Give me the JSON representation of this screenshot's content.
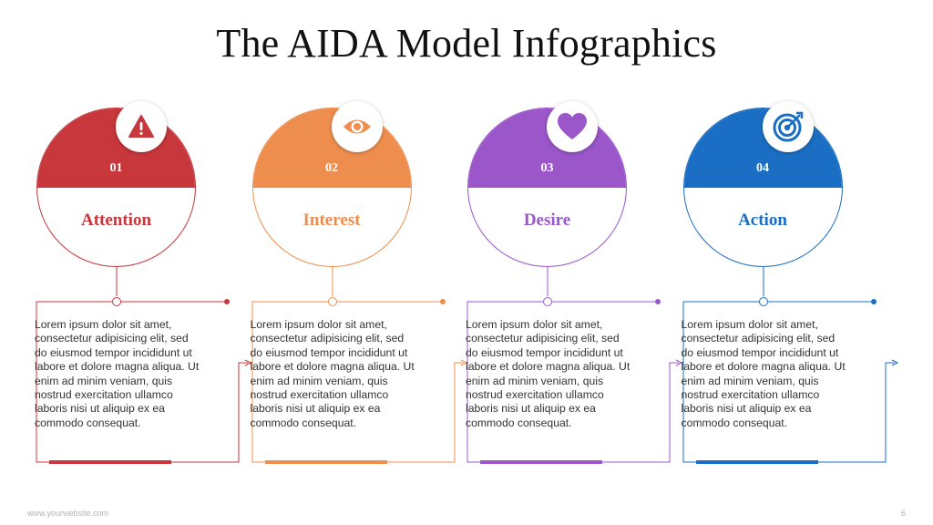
{
  "title": "The AIDA Model Infographics",
  "steps": [
    {
      "number": "01",
      "label": "Attention",
      "icon": "warning-icon",
      "color": "#C7373B",
      "text": "Lorem ipsum dolor sit amet, consectetur adipisicing elit, sed do eiusmod tempor incididunt ut labore et dolore magna aliqua. Ut enim ad minim veniam, quis nostrud exercitation ullamco laboris nisi ut aliquip ex ea commodo consequat."
    },
    {
      "number": "02",
      "label": "Interest",
      "icon": "eye-icon",
      "color": "#EE8E4E",
      "text": "Lorem ipsum dolor sit amet, consectetur adipisicing elit, sed do eiusmod tempor incididunt ut labore et dolore magna aliqua. Ut enim ad minim veniam, quis nostrud exercitation ullamco laboris nisi ut aliquip ex ea commodo consequat."
    },
    {
      "number": "03",
      "label": "Desire",
      "icon": "heart-icon",
      "color": "#9B57C9",
      "text": "Lorem ipsum dolor sit amet, consectetur adipisicing elit, sed do eiusmod tempor incididunt ut labore et dolore magna aliqua. Ut enim ad minim veniam, quis nostrud exercitation ullamco laboris nisi ut aliquip ex ea commodo consequat."
    },
    {
      "number": "04",
      "label": "Action",
      "icon": "target-icon",
      "color": "#1A6FC4",
      "text": "Lorem ipsum dolor sit amet, consectetur adipisicing elit, sed do eiusmod tempor incididunt ut labore et dolore magna aliqua. Ut enim ad minim veniam, quis nostrud exercitation ullamco laboris nisi ut aliquip ex ea commodo consequat."
    }
  ],
  "footer": {
    "website": "www.yourwebsite.com",
    "page_number": "6"
  }
}
